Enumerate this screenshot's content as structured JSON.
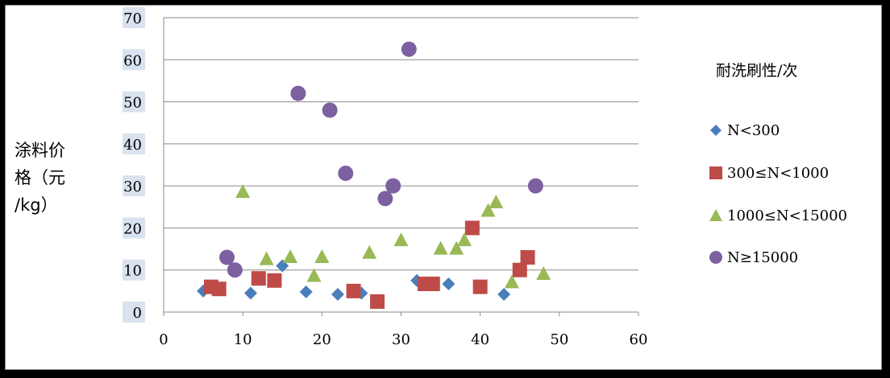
{
  "chart_data": {
    "type": "scatter",
    "title": "",
    "xlabel": "",
    "ylabel": "涂料价格（元/kg）",
    "ylabel_lines": [
      "涂料价",
      "格（元",
      "/kg）"
    ],
    "xlim": [
      0,
      60
    ],
    "ylim": [
      0,
      70
    ],
    "xticks": [
      "0",
      "10",
      "20",
      "30",
      "40",
      "50",
      "60"
    ],
    "yticks": [
      "0",
      "10",
      "20",
      "30",
      "40",
      "50",
      "60",
      "70"
    ],
    "grid": "horizontal",
    "legend_title": "耐洗刷性/次",
    "legend_placement": "right",
    "series": [
      {
        "name": "N<300",
        "marker": "diamond",
        "color": "#4a7ebb",
        "points": [
          [
            5,
            5
          ],
          [
            11,
            4.5
          ],
          [
            15,
            11
          ],
          [
            18,
            4.8
          ],
          [
            22,
            4.2
          ],
          [
            25,
            4.5
          ],
          [
            32,
            7.5
          ],
          [
            36,
            6.7
          ],
          [
            43,
            4.2
          ]
        ]
      },
      {
        "name": "300≤N<1000",
        "marker": "square",
        "color": "#be4b48",
        "points": [
          [
            6,
            6
          ],
          [
            7,
            5.5
          ],
          [
            12,
            8
          ],
          [
            14,
            7.5
          ],
          [
            24,
            5
          ],
          [
            27,
            2.5
          ],
          [
            33,
            6.7
          ],
          [
            34,
            6.7
          ],
          [
            39,
            20
          ],
          [
            40,
            6
          ],
          [
            45,
            10
          ],
          [
            46,
            13
          ]
        ]
      },
      {
        "name": "1000≤N<15000",
        "marker": "triangle",
        "color": "#98b954",
        "points": [
          [
            10,
            28.5
          ],
          [
            13,
            12.5
          ],
          [
            16,
            13
          ],
          [
            19,
            8.5
          ],
          [
            20,
            13
          ],
          [
            26,
            14
          ],
          [
            30,
            17
          ],
          [
            35,
            15
          ],
          [
            37,
            15
          ],
          [
            38,
            17
          ],
          [
            41,
            24
          ],
          [
            42,
            26
          ],
          [
            44,
            7
          ],
          [
            48,
            9
          ]
        ]
      },
      {
        "name": "N≥15000",
        "marker": "circle",
        "color": "#7d60a0",
        "points": [
          [
            8,
            13
          ],
          [
            9,
            10
          ],
          [
            17,
            52
          ],
          [
            21,
            48
          ],
          [
            23,
            33
          ],
          [
            28,
            27
          ],
          [
            29,
            30
          ],
          [
            31,
            62.5
          ],
          [
            47,
            30
          ]
        ]
      }
    ]
  }
}
